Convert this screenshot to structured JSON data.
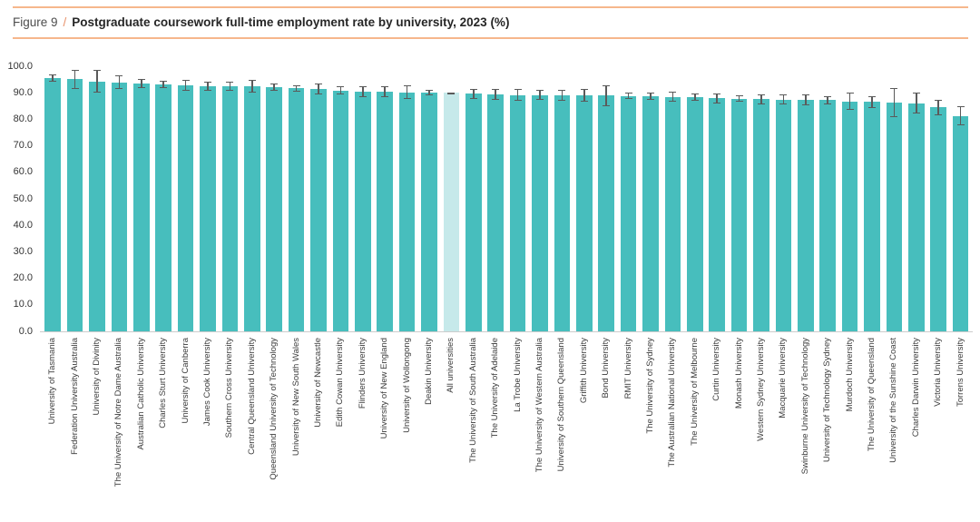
{
  "figure": {
    "label": "Figure 9",
    "separator": "/",
    "title": "Postgraduate coursework full-time employment rate by university, 2023 (%)"
  },
  "chart_data": {
    "type": "bar",
    "orientation": "vertical",
    "title": "Postgraduate coursework full-time employment rate by university, 2023 (%)",
    "xlabel": "",
    "ylabel": "",
    "ylim": [
      0,
      100
    ],
    "ytick_step": 10,
    "ytick_format": "one-decimal",
    "grid": false,
    "legend": "none",
    "error_bars": true,
    "highlight_category": "All universities",
    "categories": [
      "University of Tasmania",
      "Federation University Australia",
      "University of Divinity",
      "The University of Notre Dame Australia",
      "Australian Catholic University",
      "Charles Sturt University",
      "University of Canberra",
      "James Cook University",
      "Southern Cross University",
      "Central Queensland University",
      "Queensland University of Technology",
      "University of New South Wales",
      "University of Newcastle",
      "Edith Cowan University",
      "Flinders University",
      "University of New England",
      "University of Wollongong",
      "Deakin University",
      "All universities",
      "The University of South Australia",
      "The University of Adelaide",
      "La Trobe University",
      "The University of Western Australia",
      "University of Southern Queensland",
      "Griffith University",
      "Bond University",
      "RMIT University",
      "The University of Sydney",
      "The Australian National University",
      "The University of Melbourne",
      "Curtin University",
      "Monash University",
      "Western Sydney University",
      "Macquarie University",
      "Swinburne University of Technology",
      "University of Technology Sydney",
      "Murdoch University",
      "The University of Queensland",
      "University of the Sunshine Coast",
      "Charles Darwin University",
      "Victoria University",
      "Torrens University"
    ],
    "values": [
      95.6,
      95.1,
      94.3,
      93.9,
      93.4,
      93.2,
      92.8,
      92.6,
      92.6,
      92.5,
      92.1,
      91.7,
      91.4,
      90.9,
      90.5,
      90.4,
      90.2,
      90.0,
      89.9,
      89.6,
      89.4,
      89.2,
      89.2,
      89.1,
      89.0,
      88.9,
      88.8,
      88.7,
      88.5,
      88.3,
      87.9,
      87.8,
      87.6,
      87.5,
      87.3,
      87.2,
      86.7,
      86.5,
      86.2,
      86.1,
      84.5,
      81.2
    ],
    "errors": [
      1.3,
      3.6,
      4.4,
      2.6,
      1.7,
      1.3,
      2.2,
      1.7,
      1.7,
      2.3,
      1.4,
      1.2,
      2.0,
      1.5,
      2.0,
      2.0,
      2.6,
      1.0,
      0.3,
      2.0,
      2.1,
      2.2,
      2.0,
      2.1,
      2.4,
      3.8,
      1.3,
      1.5,
      1.9,
      1.4,
      1.9,
      1.3,
      1.9,
      1.9,
      2.0,
      1.5,
      3.2,
      2.2,
      5.5,
      4.0,
      3.0,
      3.6
    ]
  },
  "colors": {
    "bar": "#47BEBD",
    "highlight_bar": "#C6E9EA",
    "error_bar": "#5a5a5a",
    "accent_rule": "#F6B78C",
    "caption_slash": "#E8926B",
    "caption_title": "#262626",
    "caption_label": "#4d4d4d",
    "axis_text": "#333333",
    "baseline": "#cccccc"
  }
}
